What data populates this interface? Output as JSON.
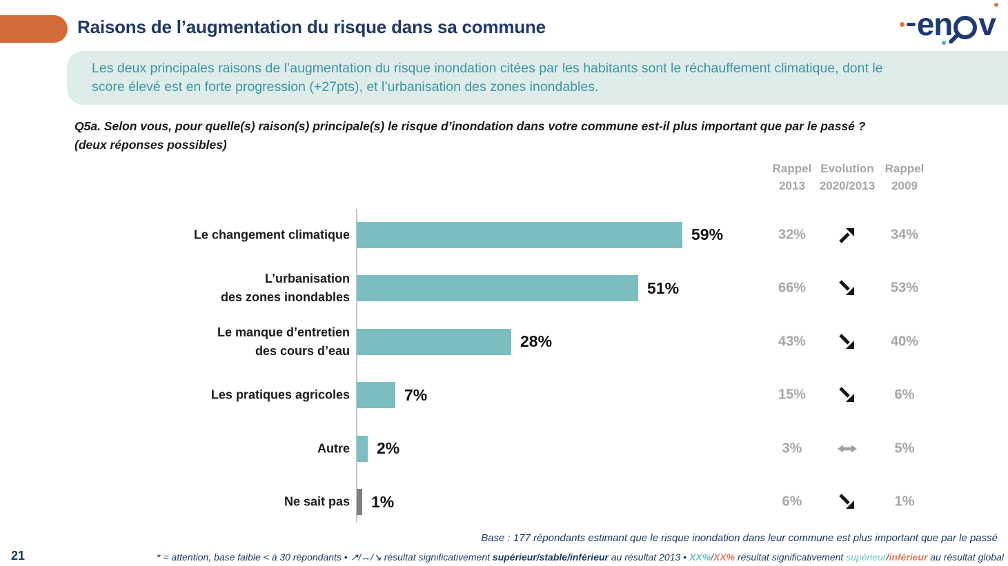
{
  "colors": {
    "accent_orange": "#D26B38",
    "navy": "#1F3864",
    "highlight_bg": "#DEEDEA",
    "teal_text": "#3E94A3",
    "bar_teal": "#7CBEC0",
    "bar_gray": "#7F7F7F",
    "gray_text": "#A6A6A6",
    "arrow_black": "#161616",
    "arrow_gray": "#9E9E9E",
    "footnote_teal": "#6FBFC4",
    "footnote_orange": "#E0795B"
  },
  "header": {
    "title": "Raisons de l’augmentation du risque dans sa commune"
  },
  "logo": {
    "l1": "e",
    "l2": "n",
    "l3": "v",
    "brand": "enov"
  },
  "summary": {
    "text": "Les deux principales raisons de l’augmentation du risque inondation citées par les habitants sont le réchauffement climatique, dont le\nscore élevé est en forte progression (+27pts), et l’urbanisation des zones inondables."
  },
  "question": {
    "line1": "Q5a. Selon vous, pour quelle(s) raison(s) principale(s) le risque d’inondation dans votre commune est-il plus important que par le passé ?",
    "line2": "(deux réponses possibles)"
  },
  "table_headers": [
    {
      "line1": "Rappel",
      "line2": "2013"
    },
    {
      "line1": "Evolution",
      "line2": "2020/2013"
    },
    {
      "line1": "Rappel",
      "line2": "2009"
    }
  ],
  "chart_data": {
    "type": "bar",
    "orientation": "horizontal",
    "unit": "%",
    "grid": false,
    "legend": false,
    "xlim": [
      0,
      63
    ],
    "categories": [
      "Le changement climatique",
      "L’urbanisation\ndes zones inondables",
      "Le manque d’entretien\ndes cours d’eau",
      "Les pratiques agricoles",
      "Autre",
      "Ne sait pas"
    ],
    "values": [
      59,
      51,
      28,
      7,
      2,
      1
    ],
    "labels": [
      "59%",
      "51%",
      "28%",
      "7%",
      "2%",
      "1%"
    ],
    "bar_style": [
      "teal",
      "teal",
      "teal",
      "teal",
      "teal",
      "gray"
    ],
    "rappel_2013": [
      "32%",
      "66%",
      "43%",
      "15%",
      "3%",
      "6%"
    ],
    "evolution_2020_2013": [
      "up",
      "down",
      "down",
      "down",
      "stable",
      "down"
    ],
    "rappel_2009": [
      "34%",
      "53%",
      "40%",
      "6%",
      "5%",
      "1%"
    ]
  },
  "footer": {
    "page_number": "21",
    "base": "Base : 177 répondants estimant que le risque inondation dans leur commune est plus important que par le passé",
    "footnote_segments": [
      {
        "t": "* = attention, base faible < à 30 répondants • "
      },
      {
        "t": "↗/↔/↘"
      },
      {
        "t": " résultat significativement "
      },
      {
        "t": "supérieur/stable/inférieur",
        "b": true
      },
      {
        "t": " au résultat 2013 • "
      },
      {
        "t": "XX%",
        "c": "teal",
        "b": true
      },
      {
        "t": "/"
      },
      {
        "t": "XX%",
        "c": "orange",
        "b": true
      },
      {
        "t": " résultat significativement "
      },
      {
        "t": "supérieur",
        "c": "teal"
      },
      {
        "t": "/"
      },
      {
        "t": "inférieur",
        "c": "orange",
        "b": true
      },
      {
        "t": " au résultat global"
      }
    ]
  }
}
